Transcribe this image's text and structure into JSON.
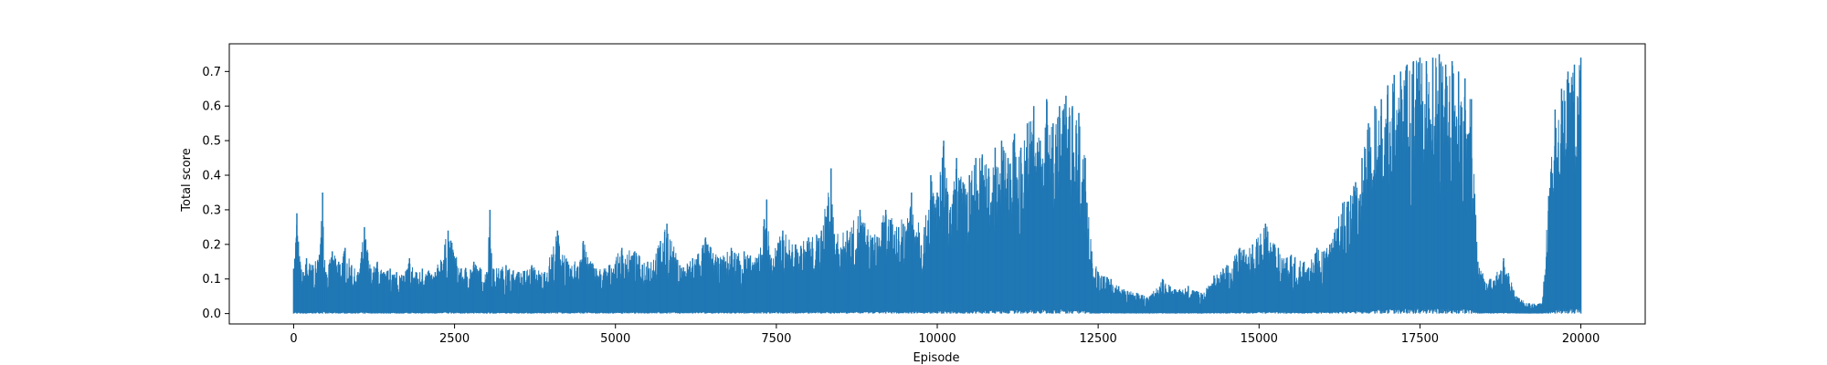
{
  "chart_data": {
    "type": "line",
    "title": "",
    "xlabel": "Episode",
    "ylabel": "Total score",
    "xlim": [
      -1000,
      21000
    ],
    "ylim": [
      -0.03,
      0.78
    ],
    "x_ticks": [
      0,
      2500,
      5000,
      7500,
      10000,
      12500,
      15000,
      17500,
      20000
    ],
    "x_tick_labels": [
      "0",
      "2500",
      "5000",
      "7500",
      "10000",
      "12500",
      "15000",
      "17500",
      "20000"
    ],
    "y_ticks": [
      0.0,
      0.1,
      0.2,
      0.3,
      0.4,
      0.5,
      0.6,
      0.7
    ],
    "y_tick_labels": [
      "0.0",
      "0.1",
      "0.2",
      "0.3",
      "0.4",
      "0.5",
      "0.6",
      "0.7"
    ],
    "grid": false,
    "legend": "none",
    "series": [
      {
        "color": "#1f77b4",
        "description_note_free": true,
        "x": [
          0,
          50,
          100,
          150,
          200,
          300,
          400,
          450,
          500,
          600,
          700,
          800,
          900,
          1000,
          1100,
          1200,
          1300,
          1400,
          1500,
          1600,
          1700,
          1800,
          1900,
          2000,
          2200,
          2400,
          2600,
          2800,
          3000,
          3050,
          3100,
          3300,
          3500,
          3700,
          3900,
          4100,
          4300,
          4500,
          4700,
          4900,
          5100,
          5300,
          5500,
          5700,
          5800,
          6000,
          6200,
          6400,
          6600,
          6800,
          7000,
          7200,
          7350,
          7400,
          7600,
          7800,
          8000,
          8200,
          8350,
          8400,
          8600,
          8800,
          9000,
          9200,
          9400,
          9600,
          9800,
          9900,
          10000,
          10100,
          10200,
          10300,
          10400,
          10500,
          10600,
          10700,
          10800,
          10900,
          11000,
          11100,
          11200,
          11300,
          11400,
          11500,
          11600,
          11700,
          11800,
          11900,
          12000,
          12100,
          12200,
          12300,
          12400,
          12500,
          12700,
          12900,
          13100,
          13300,
          13500,
          13700,
          13900,
          14100,
          14300,
          14500,
          14700,
          14900,
          15100,
          15300,
          15500,
          15700,
          15900,
          16100,
          16300,
          16500,
          16600,
          16700,
          16800,
          16900,
          17000,
          17100,
          17200,
          17300,
          17400,
          17500,
          17600,
          17700,
          17800,
          17900,
          18000,
          18100,
          18200,
          18300,
          18400,
          18600,
          18800,
          19000,
          19200,
          19400,
          19500,
          19600,
          19700,
          19800,
          19900,
          20000
        ],
        "y": [
          0.13,
          0.29,
          0.15,
          0.12,
          0.16,
          0.14,
          0.17,
          0.35,
          0.12,
          0.18,
          0.15,
          0.19,
          0.14,
          0.12,
          0.25,
          0.13,
          0.15,
          0.12,
          0.13,
          0.12,
          0.11,
          0.16,
          0.12,
          0.13,
          0.12,
          0.24,
          0.13,
          0.15,
          0.12,
          0.3,
          0.13,
          0.14,
          0.12,
          0.14,
          0.12,
          0.24,
          0.13,
          0.21,
          0.13,
          0.14,
          0.19,
          0.18,
          0.15,
          0.21,
          0.26,
          0.14,
          0.16,
          0.22,
          0.16,
          0.19,
          0.18,
          0.16,
          0.33,
          0.17,
          0.24,
          0.2,
          0.22,
          0.24,
          0.42,
          0.23,
          0.24,
          0.3,
          0.22,
          0.3,
          0.25,
          0.35,
          0.25,
          0.4,
          0.35,
          0.5,
          0.3,
          0.45,
          0.38,
          0.4,
          0.45,
          0.46,
          0.42,
          0.48,
          0.5,
          0.45,
          0.52,
          0.48,
          0.55,
          0.6,
          0.5,
          0.62,
          0.55,
          0.6,
          0.63,
          0.6,
          0.58,
          0.45,
          0.18,
          0.12,
          0.1,
          0.07,
          0.06,
          0.05,
          0.1,
          0.07,
          0.08,
          0.06,
          0.11,
          0.14,
          0.19,
          0.2,
          0.26,
          0.19,
          0.17,
          0.15,
          0.19,
          0.2,
          0.32,
          0.38,
          0.45,
          0.55,
          0.6,
          0.62,
          0.66,
          0.69,
          0.7,
          0.72,
          0.73,
          0.74,
          0.73,
          0.74,
          0.75,
          0.72,
          0.73,
          0.7,
          0.68,
          0.62,
          0.15,
          0.1,
          0.16,
          0.05,
          0.03,
          0.03,
          0.34,
          0.59,
          0.65,
          0.7,
          0.72,
          0.74
        ],
        "y_min_band": 0.0
      }
    ]
  }
}
